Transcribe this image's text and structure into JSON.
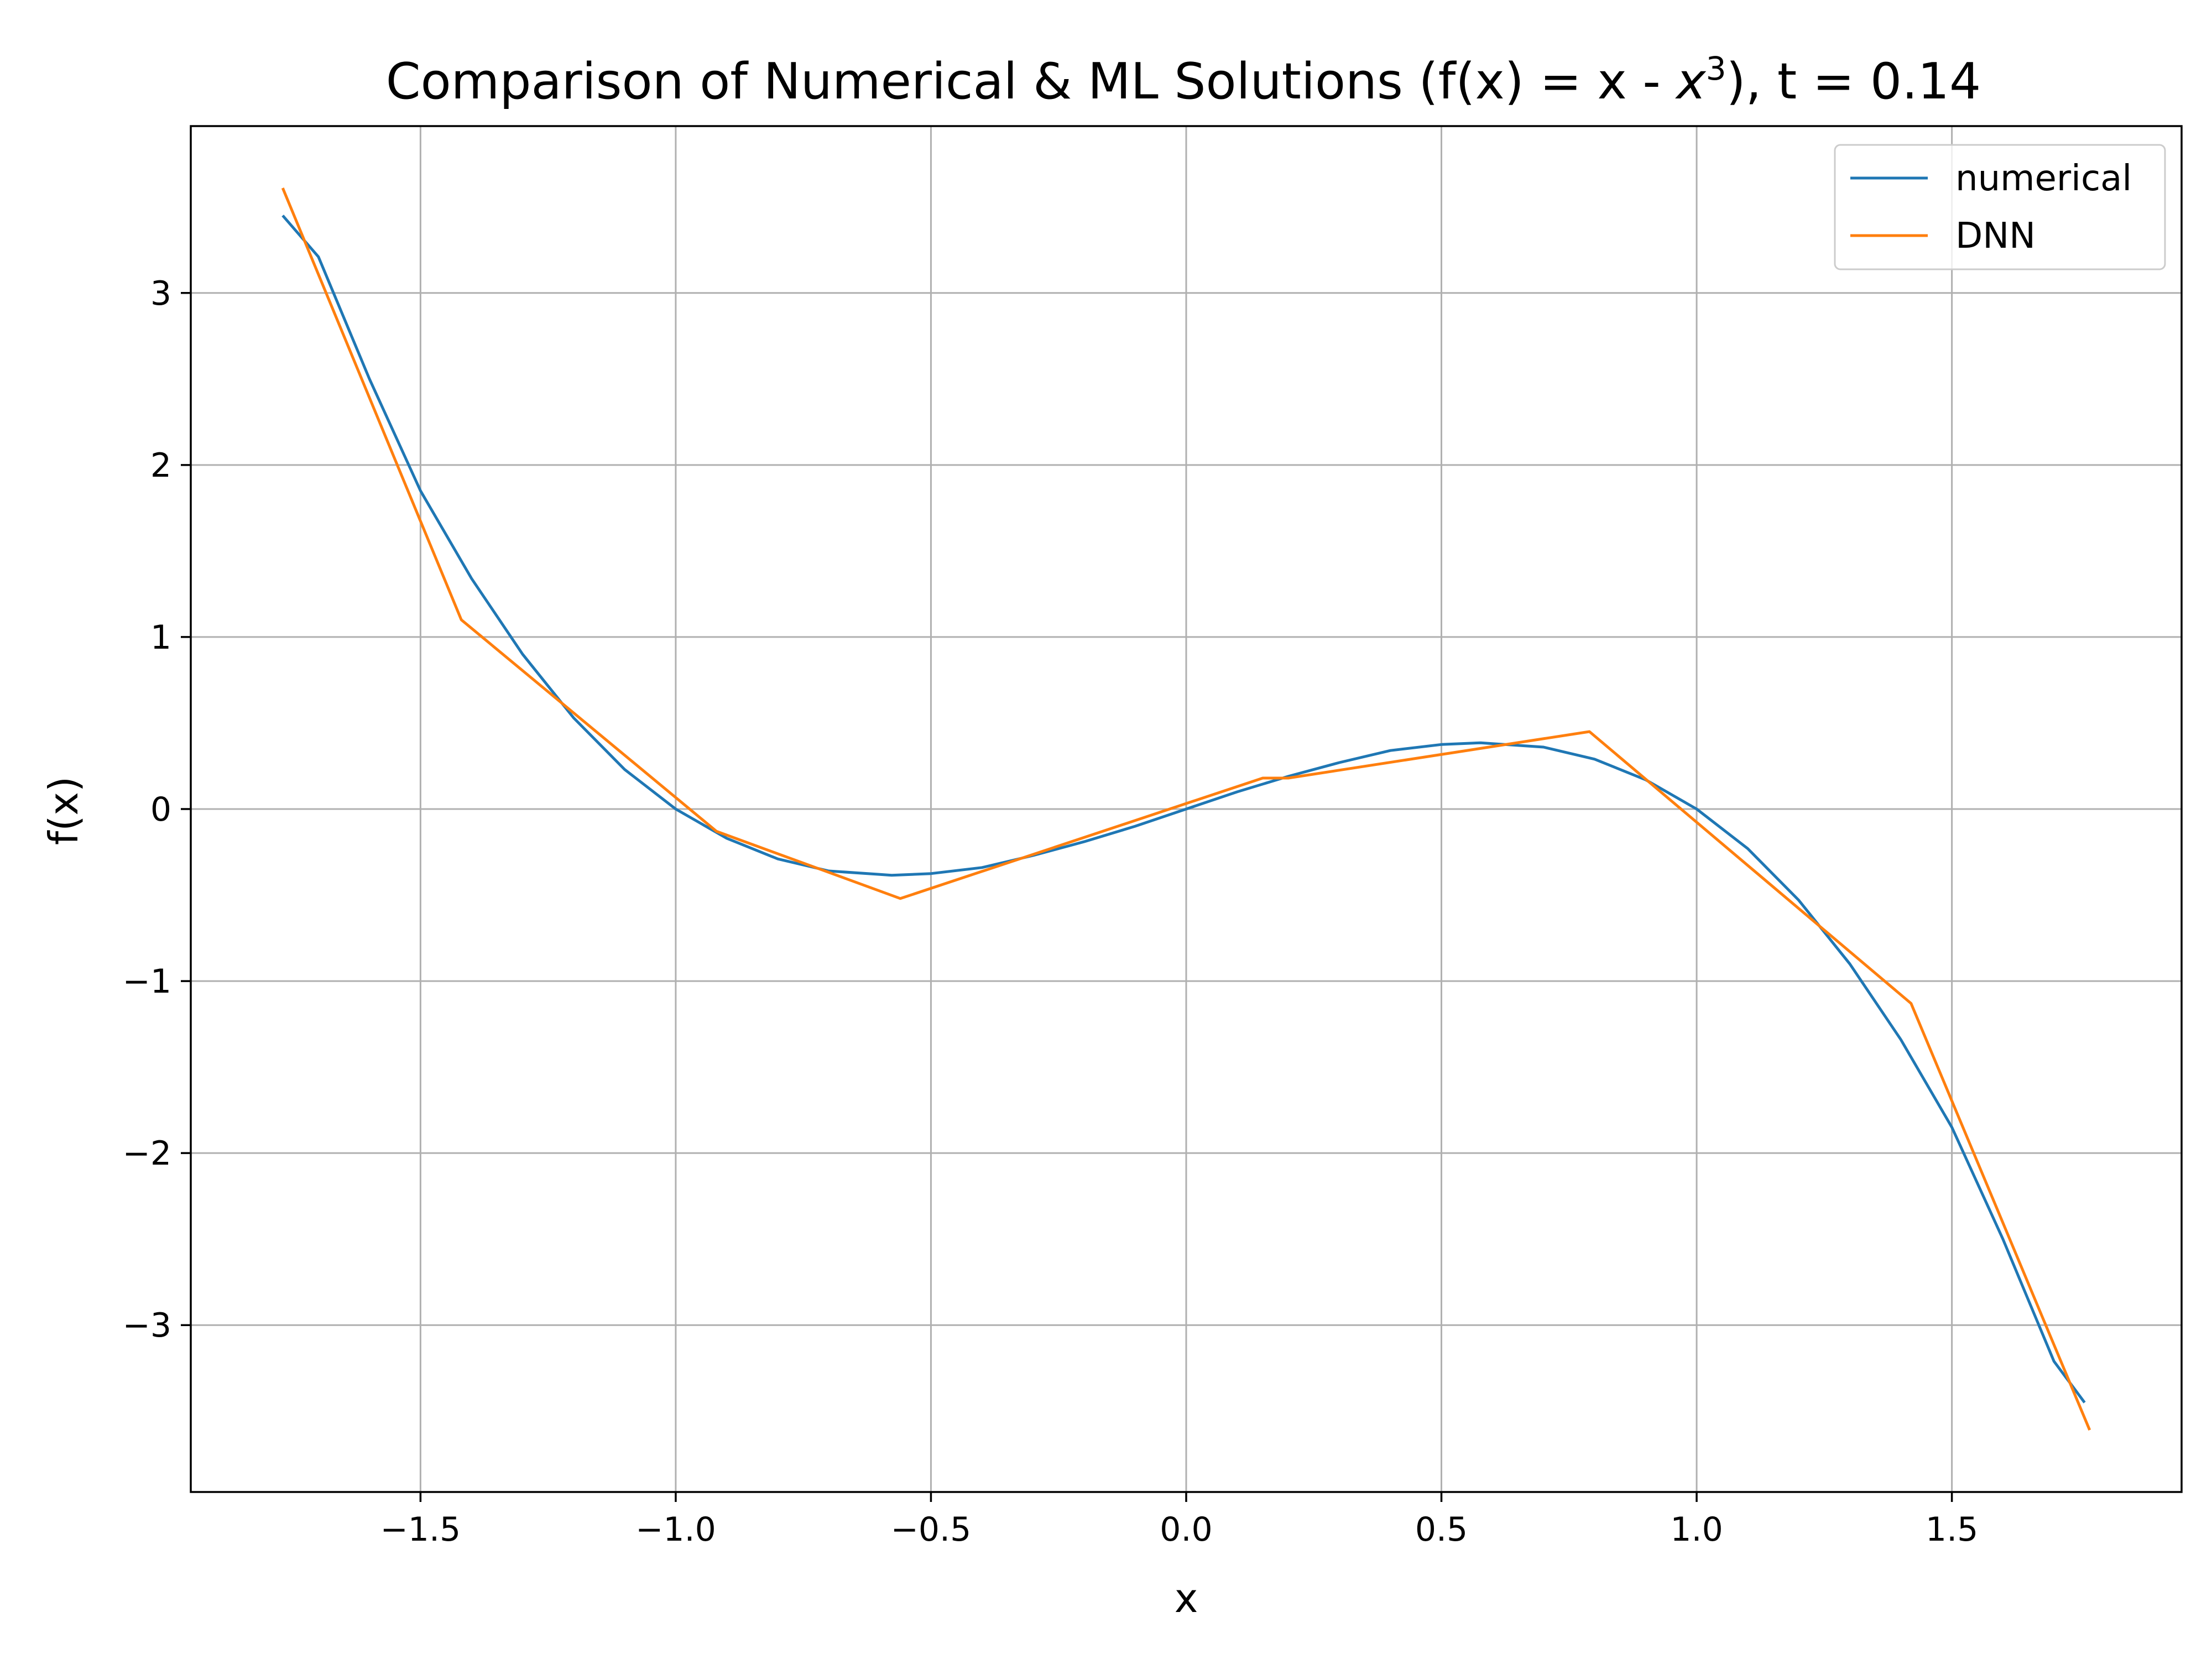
{
  "chart_data": {
    "type": "line",
    "title": "Comparison of Numerical & ML Solutions (f(x) = x - ",
    "title_math": "x",
    "title_sup": "3",
    "title_end": "), t = 0.14",
    "xlabel": "x",
    "ylabel": "f(x)",
    "xlim": [
      -1.95,
      1.95
    ],
    "ylim": [
      -3.97,
      3.97
    ],
    "xticks": [
      -1.5,
      -1.0,
      -0.5,
      0.0,
      0.5,
      1.0,
      1.5
    ],
    "xtick_labels": [
      "−1.5",
      "−1.0",
      "−0.5",
      "0.0",
      "0.5",
      "1.0",
      "1.5"
    ],
    "yticks": [
      -3,
      -2,
      -1,
      0,
      1,
      2,
      3
    ],
    "ytick_labels": [
      "−3",
      "−2",
      "−1",
      "0",
      "1",
      "2",
      "3"
    ],
    "grid": true,
    "legend_position": "top-right",
    "series": [
      {
        "name": "numerical",
        "color": "#1f77b4",
        "x": [
          -1.77,
          -1.7,
          -1.6,
          -1.5,
          -1.4,
          -1.3,
          -1.2,
          -1.1,
          -1.0,
          -0.9,
          -0.8,
          -0.7,
          -0.6,
          -0.577,
          -0.5,
          -0.4,
          -0.3,
          -0.2,
          -0.1,
          0.0,
          0.1,
          0.2,
          0.3,
          0.4,
          0.5,
          0.577,
          0.6,
          0.7,
          0.8,
          0.9,
          1.0,
          1.1,
          1.2,
          1.3,
          1.4,
          1.5,
          1.6,
          1.7,
          1.76
        ],
        "y": [
          3.45,
          3.21,
          2.5,
          1.85,
          1.34,
          0.9,
          0.53,
          0.23,
          0.0,
          -0.17,
          -0.29,
          -0.36,
          -0.38,
          -0.385,
          -0.375,
          -0.34,
          -0.27,
          -0.19,
          -0.1,
          0.0,
          0.1,
          0.19,
          0.27,
          0.34,
          0.375,
          0.385,
          0.38,
          0.36,
          0.29,
          0.17,
          0.0,
          -0.23,
          -0.53,
          -0.9,
          -1.34,
          -1.85,
          -2.5,
          -3.21,
          -3.45
        ]
      },
      {
        "name": "DNN",
        "color": "#ff7f0e",
        "x": [
          -1.77,
          -1.42,
          -0.92,
          -0.56,
          0.15,
          0.2,
          0.79,
          1.42,
          1.77
        ],
        "y": [
          3.61,
          1.1,
          -0.13,
          -0.52,
          0.18,
          0.18,
          0.45,
          -1.13,
          -3.61
        ]
      }
    ]
  }
}
